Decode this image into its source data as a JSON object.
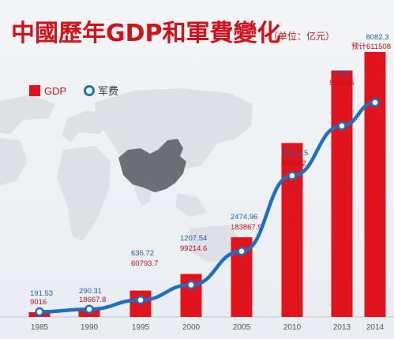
{
  "chart_data": {
    "type": "bar",
    "title": "中國歷年GDP和軍費變化",
    "unit_label": "（单位：亿元）",
    "categories": [
      "1985",
      "1990",
      "1995",
      "2000",
      "2005",
      "2010",
      "2013",
      "2014"
    ],
    "series": [
      {
        "name": "GDP",
        "kind": "bar",
        "color": "#e0141c",
        "values": [
          9016,
          18667.8,
          60793.7,
          99214.6,
          183867.9,
          401512,
          568845,
          611508
        ],
        "labels": [
          "9016",
          "18667.8",
          "60793.7",
          "99214.6",
          "183867.9",
          "401512",
          "568845",
          "预计611508"
        ]
      },
      {
        "name": "军费",
        "kind": "line",
        "color": "#1f6fc0",
        "values": [
          191.53,
          290.31,
          636.72,
          1207.54,
          2474.96,
          5321.15,
          7202,
          8082.3
        ],
        "labels": [
          "191.53",
          "290.31",
          "636.72",
          "1207.54",
          "2474.96",
          "5321.15",
          "7202",
          "8082.3"
        ]
      }
    ],
    "legend_position": "top-left",
    "grid": false,
    "colors": {
      "bar": "#e0141c",
      "line": "#1f6fc0",
      "title": "#d0131b",
      "map": "#dcdfe3",
      "china": "#6b6f73"
    }
  }
}
